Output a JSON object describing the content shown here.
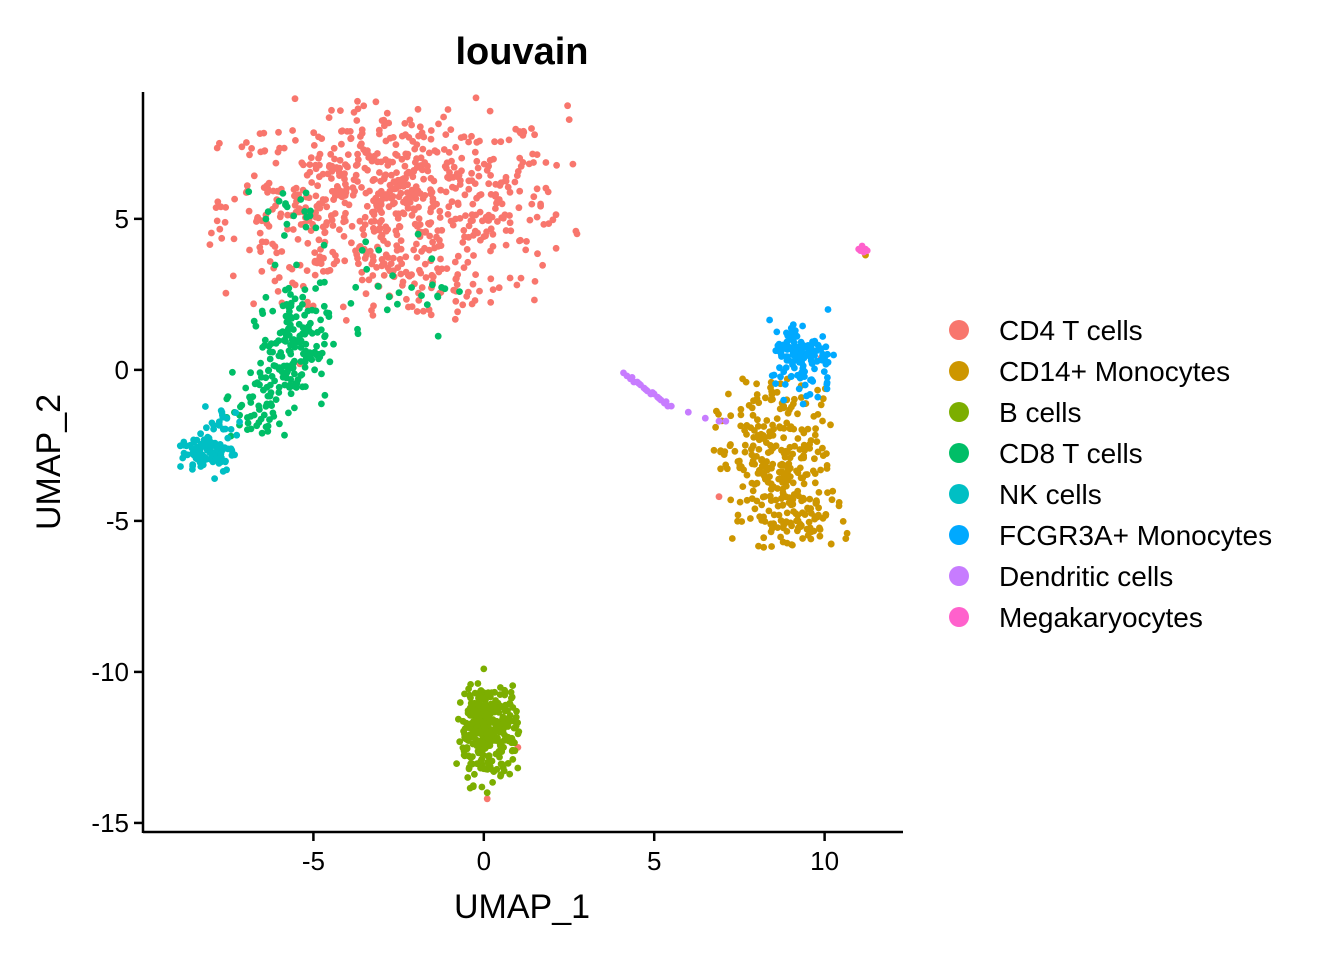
{
  "chart_data": {
    "type": "scatter",
    "title": "louvain",
    "xlabel": "UMAP_1",
    "ylabel": "UMAP_2",
    "xlim": [
      -10,
      12.3
    ],
    "ylim": [
      -15.3,
      9.2
    ],
    "xticks": [
      -5,
      0,
      5,
      10
    ],
    "yticks": [
      -15,
      -10,
      -5,
      0,
      5
    ],
    "legend_position": "right",
    "grid": false,
    "series": [
      {
        "name": "CD4 T cells",
        "color": "#F8766D",
        "clusters": [
          {
            "cx": -2.6,
            "cy": 5.5,
            "sx": 2.5,
            "sy": 1.6,
            "n": 700
          },
          {
            "cx": -5.5,
            "cy": 5.6,
            "sx": 0.6,
            "sy": 0.4,
            "n": 25
          },
          {
            "cx": -2.0,
            "cy": 2.5,
            "sx": 1.2,
            "sy": 0.6,
            "n": 35
          }
        ],
        "points": [
          [
            9.9,
            0.4
          ],
          [
            6.9,
            -4.2
          ],
          [
            0.1,
            -14.2
          ],
          [
            1.0,
            -12.5
          ],
          [
            11.2,
            3.9
          ],
          [
            -5.4,
            0.2
          ]
        ]
      },
      {
        "name": "CD14+ Monocytes",
        "color": "#CD9600",
        "clusters": [
          {
            "cx": 8.6,
            "cy": -3.2,
            "sx": 0.85,
            "sy": 1.25,
            "n": 260
          },
          {
            "cx": 9.4,
            "cy": -5.0,
            "sx": 0.7,
            "sy": 0.5,
            "n": 60
          },
          {
            "cx": 8.4,
            "cy": -0.8,
            "sx": 0.4,
            "sy": 0.4,
            "n": 20
          }
        ],
        "points": [
          [
            11.2,
            3.8
          ],
          [
            6.8,
            -1.9
          ]
        ]
      },
      {
        "name": "B cells",
        "color": "#7CAE00",
        "clusters": [
          {
            "cx": 0.1,
            "cy": -12.0,
            "sx": 0.45,
            "sy": 0.85,
            "n": 300
          }
        ],
        "points": [
          [
            0.0,
            -9.9
          ],
          [
            0.1,
            -14.0
          ]
        ]
      },
      {
        "name": "CD8 T cells",
        "color": "#00BE67",
        "clusters": [
          {
            "cx": -5.6,
            "cy": 0.8,
            "sx": 0.5,
            "sy": 0.9,
            "n": 150
          },
          {
            "cx": -6.6,
            "cy": -1.2,
            "sx": 0.5,
            "sy": 0.7,
            "n": 60
          },
          {
            "cx": -3.5,
            "cy": 2.8,
            "sx": 1.6,
            "sy": 0.9,
            "n": 40
          },
          {
            "cx": -5.6,
            "cy": 5.4,
            "sx": 0.5,
            "sy": 0.4,
            "n": 15
          }
        ],
        "points": [
          [
            -6.9,
            5.9
          ],
          [
            -5.1,
            5.1
          ]
        ]
      },
      {
        "name": "NK cells",
        "color": "#00BFC4",
        "clusters": [
          {
            "cx": -8.1,
            "cy": -2.7,
            "sx": 0.4,
            "sy": 0.35,
            "n": 90
          },
          {
            "cx": -7.6,
            "cy": -1.8,
            "sx": 0.3,
            "sy": 0.3,
            "n": 20
          }
        ],
        "points": [
          [
            -8.9,
            -3.2
          ],
          [
            -7.9,
            -3.6
          ]
        ]
      },
      {
        "name": "FCGR3A+ Monocytes",
        "color": "#00A9FF",
        "clusters": [
          {
            "cx": 9.3,
            "cy": 0.6,
            "sx": 0.45,
            "sy": 0.5,
            "n": 110
          },
          {
            "cx": 9.6,
            "cy": -0.3,
            "sx": 0.3,
            "sy": 0.4,
            "n": 15
          }
        ],
        "points": [
          [
            10.1,
            2.0
          ],
          [
            9.8,
            -0.9
          ],
          [
            8.8,
            -1.0
          ]
        ]
      },
      {
        "name": "Dendritic cells",
        "color": "#C77CFF",
        "clusters": [],
        "points": [
          [
            4.1,
            -0.1
          ],
          [
            4.2,
            -0.2
          ],
          [
            4.3,
            -0.3
          ],
          [
            4.4,
            -0.4
          ],
          [
            4.5,
            -0.4
          ],
          [
            4.6,
            -0.5
          ],
          [
            4.7,
            -0.6
          ],
          [
            4.8,
            -0.7
          ],
          [
            4.9,
            -0.8
          ],
          [
            5.0,
            -0.8
          ],
          [
            5.1,
            -0.9
          ],
          [
            5.2,
            -1.0
          ],
          [
            5.3,
            -1.1
          ],
          [
            5.4,
            -1.2
          ],
          [
            5.5,
            -1.2
          ],
          [
            4.35,
            -0.25
          ],
          [
            4.55,
            -0.45
          ],
          [
            4.75,
            -0.65
          ],
          [
            4.95,
            -0.75
          ],
          [
            5.15,
            -0.95
          ],
          [
            5.35,
            -1.05
          ],
          [
            6.0,
            -1.4
          ],
          [
            6.5,
            -1.6
          ],
          [
            6.9,
            -1.7
          ],
          [
            7.1,
            -1.7
          ]
        ]
      },
      {
        "name": "Megakaryocytes",
        "color": "#FF61CC",
        "clusters": [],
        "points": [
          [
            11.0,
            4.0
          ],
          [
            11.1,
            4.05
          ],
          [
            11.2,
            4.0
          ],
          [
            11.15,
            3.9
          ],
          [
            11.05,
            3.95
          ],
          [
            11.25,
            3.95
          ],
          [
            11.1,
            4.1
          ]
        ]
      }
    ]
  }
}
